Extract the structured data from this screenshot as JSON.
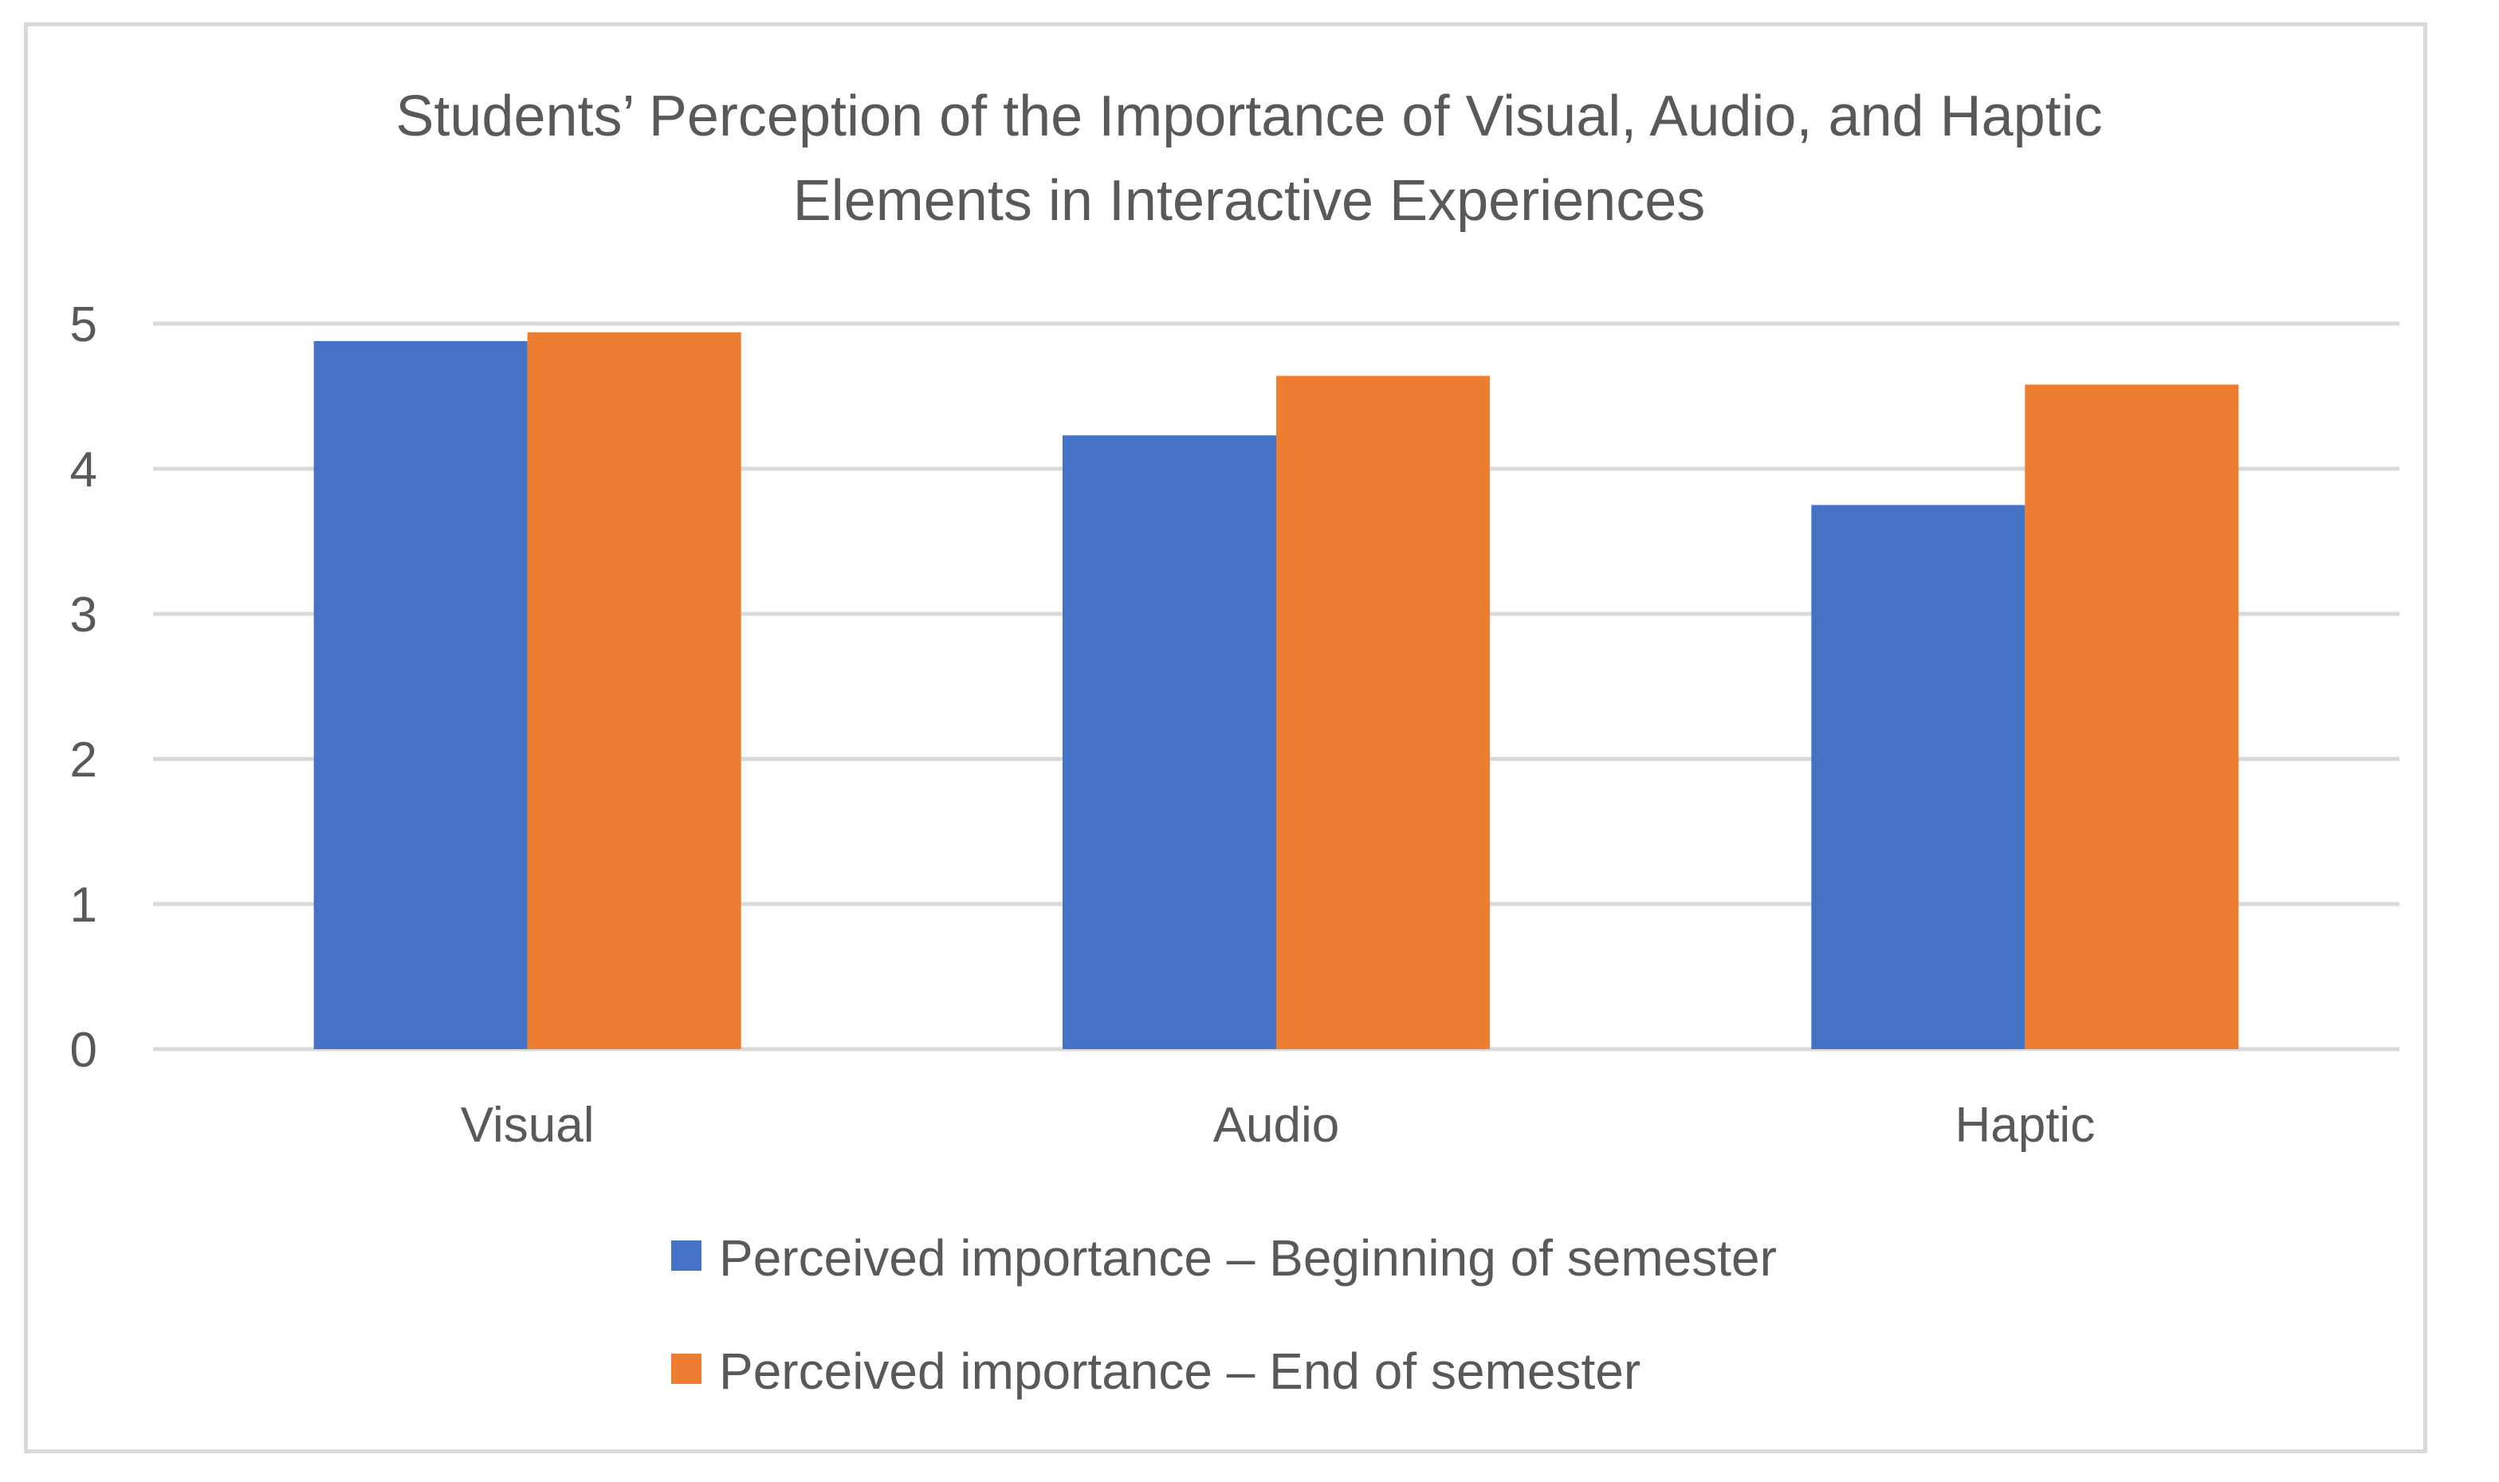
{
  "chart_data": {
    "type": "bar",
    "title": "Students’ Perception of the Importance of Visual, Audio, and Haptic Elements in Interactive Experiences",
    "title_lines": [
      "Students’ Perception of the Importance of Visual, Audio, and Haptic",
      "Elements in Interactive Experiences"
    ],
    "categories": [
      "Visual",
      "Audio",
      "Haptic"
    ],
    "series": [
      {
        "name": "Perceived importance – Beginning of semester",
        "color": "#4472c4",
        "values": [
          4.88,
          4.23,
          3.75
        ]
      },
      {
        "name": "Perceived importance – End of semester",
        "color": "#ed7d31",
        "values": [
          4.94,
          4.64,
          4.58
        ]
      }
    ],
    "xlabel": "",
    "ylabel": "",
    "ylim": [
      0,
      5
    ],
    "yticks": [
      "0",
      "1",
      "2",
      "3",
      "4",
      "5"
    ],
    "grid": true,
    "gridline_color": "#d9d9d9",
    "legend_position": "bottom"
  }
}
